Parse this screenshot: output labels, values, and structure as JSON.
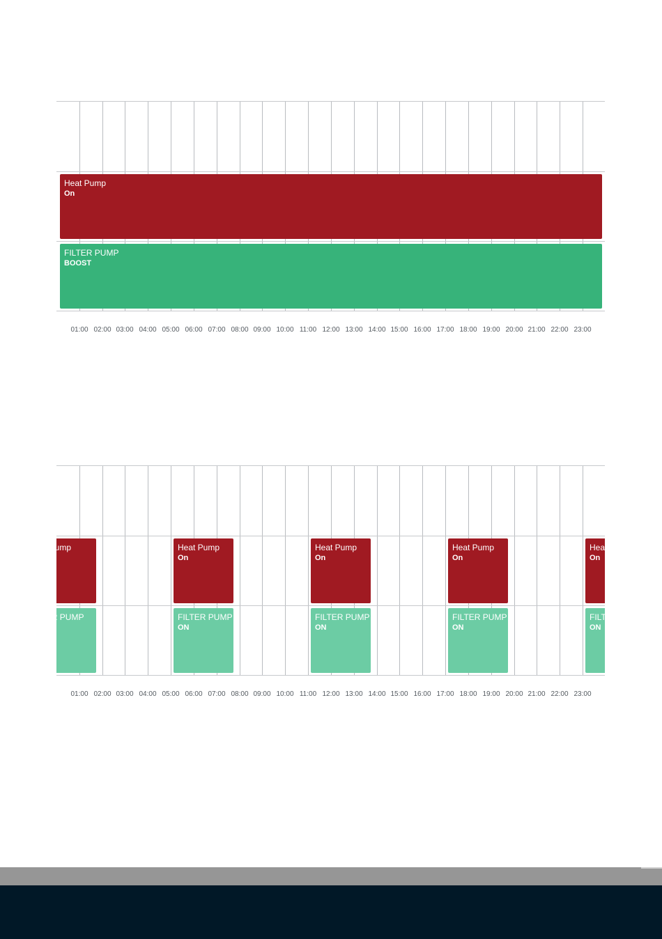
{
  "axis_labels": [
    "01:00",
    "02:00",
    "03:00",
    "04:00",
    "05:00",
    "06:00",
    "07:00",
    "08:00",
    "09:00",
    "10:00",
    "11:00",
    "12:00",
    "13:00",
    "14:00",
    "15:00",
    "16:00",
    "17:00",
    "18:00",
    "19:00",
    "20:00",
    "21:00",
    "22:00",
    "23:00"
  ],
  "colors": {
    "heat_pump": "#a01a22",
    "filter_boost": "#37b37a",
    "filter_on": "#6ccca4",
    "grid": "#b9bcc0",
    "footer_gray": "#969696",
    "footer_dark": "#011827"
  },
  "schedules": [
    {
      "rows": [
        {
          "device": "heat-pump",
          "blocks": [
            {
              "label": "Heat Pump",
              "state": "On",
              "start": "00:00",
              "end": "24:00"
            }
          ]
        },
        {
          "device": "filter-pump",
          "blocks": [
            {
              "label": "FILTER PUMP",
              "state": "BOOST",
              "start": "00:00",
              "end": "24:00"
            }
          ]
        }
      ]
    },
    {
      "rows": [
        {
          "device": "heat-pump",
          "blocks": [
            {
              "label": "Heat Pump",
              "state": "",
              "start": "-01:00",
              "end": "01:45"
            },
            {
              "label": "Heat Pump",
              "state": "On",
              "start": "05:00",
              "end": "07:45"
            },
            {
              "label": "Heat Pump",
              "state": "On",
              "start": "11:00",
              "end": "13:45"
            },
            {
              "label": "Heat Pump",
              "state": "On",
              "start": "17:00",
              "end": "19:45"
            },
            {
              "label": "Heat Pump",
              "state": "On",
              "start": "23:00",
              "end": "25:30"
            }
          ]
        },
        {
          "device": "filter-pump",
          "blocks": [
            {
              "label": "FILTER PUMP",
              "state": "",
              "start": "-01:00",
              "end": "01:45"
            },
            {
              "label": "FILTER PUMP",
              "state": "ON",
              "start": "05:00",
              "end": "07:45"
            },
            {
              "label": "FILTER PUMP",
              "state": "ON",
              "start": "11:00",
              "end": "13:45"
            },
            {
              "label": "FILTER PUMP",
              "state": "ON",
              "start": "17:00",
              "end": "19:45"
            },
            {
              "label": "FILTER PUMP",
              "state": "ON",
              "start": "23:00",
              "end": "25:30"
            }
          ]
        }
      ]
    }
  ]
}
